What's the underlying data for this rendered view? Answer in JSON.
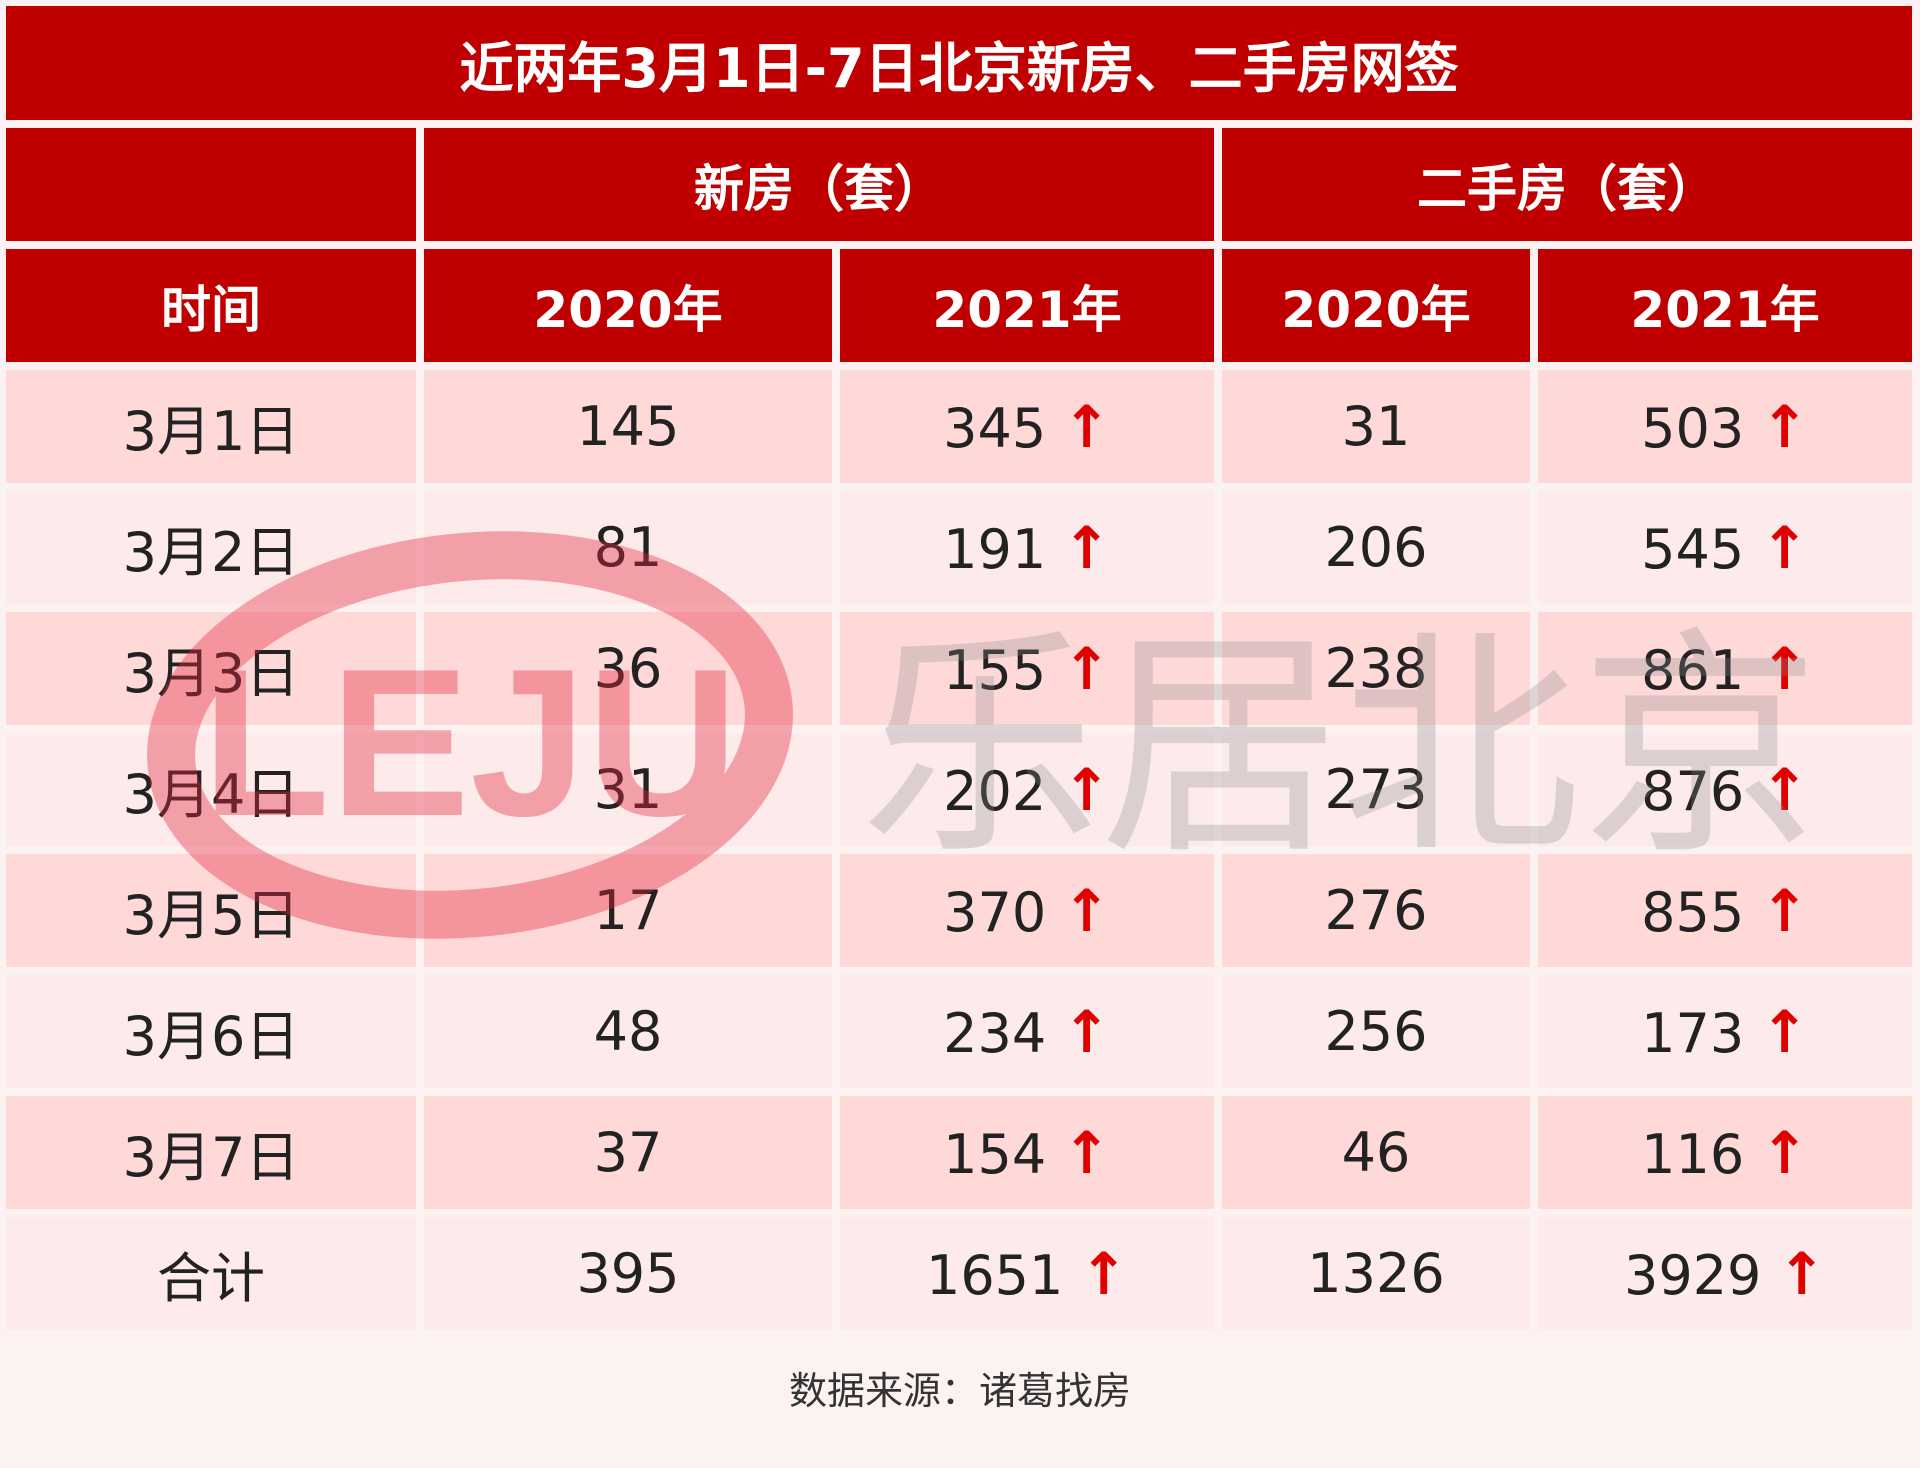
{
  "title": "近两年3月1日-7日北京新房、二手房网签",
  "group_headers": {
    "new_house": "新房（套）",
    "second_hand": "二手房（套）"
  },
  "columns": {
    "time": "时间",
    "new_2020": "2020年",
    "new_2021": "2021年",
    "second_2020": "2020年",
    "second_2021": "2021年"
  },
  "arrow_glyph": "↑",
  "rows": [
    {
      "date": "3月1日",
      "new_2020": "145",
      "new_2021": "345",
      "second_2020": "31",
      "second_2021": "503"
    },
    {
      "date": "3月2日",
      "new_2020": "81",
      "new_2021": "191",
      "second_2020": "206",
      "second_2021": "545"
    },
    {
      "date": "3月3日",
      "new_2020": "36",
      "new_2021": "155",
      "second_2020": "238",
      "second_2021": "861"
    },
    {
      "date": "3月4日",
      "new_2020": "31",
      "new_2021": "202",
      "second_2020": "273",
      "second_2021": "876"
    },
    {
      "date": "3月5日",
      "new_2020": "17",
      "new_2021": "370",
      "second_2020": "276",
      "second_2021": "855"
    },
    {
      "date": "3月6日",
      "new_2020": "48",
      "new_2021": "234",
      "second_2020": "256",
      "second_2021": "173"
    },
    {
      "date": "3月7日",
      "new_2020": "37",
      "new_2021": "154",
      "second_2020": "46",
      "second_2021": "116"
    }
  ],
  "total": {
    "label": "合计",
    "new_2020": "395",
    "new_2021": "1651",
    "second_2020": "1326",
    "second_2021": "3929"
  },
  "source": "数据来源：诸葛找房",
  "watermark": {
    "logo_text": "LEJU",
    "brand_text": "乐居北京"
  },
  "colors": {
    "header_red": "#c00000",
    "row_pink": "#ffd8d8",
    "row_light": "#fdeaea",
    "arrow_red": "#e00000"
  }
}
